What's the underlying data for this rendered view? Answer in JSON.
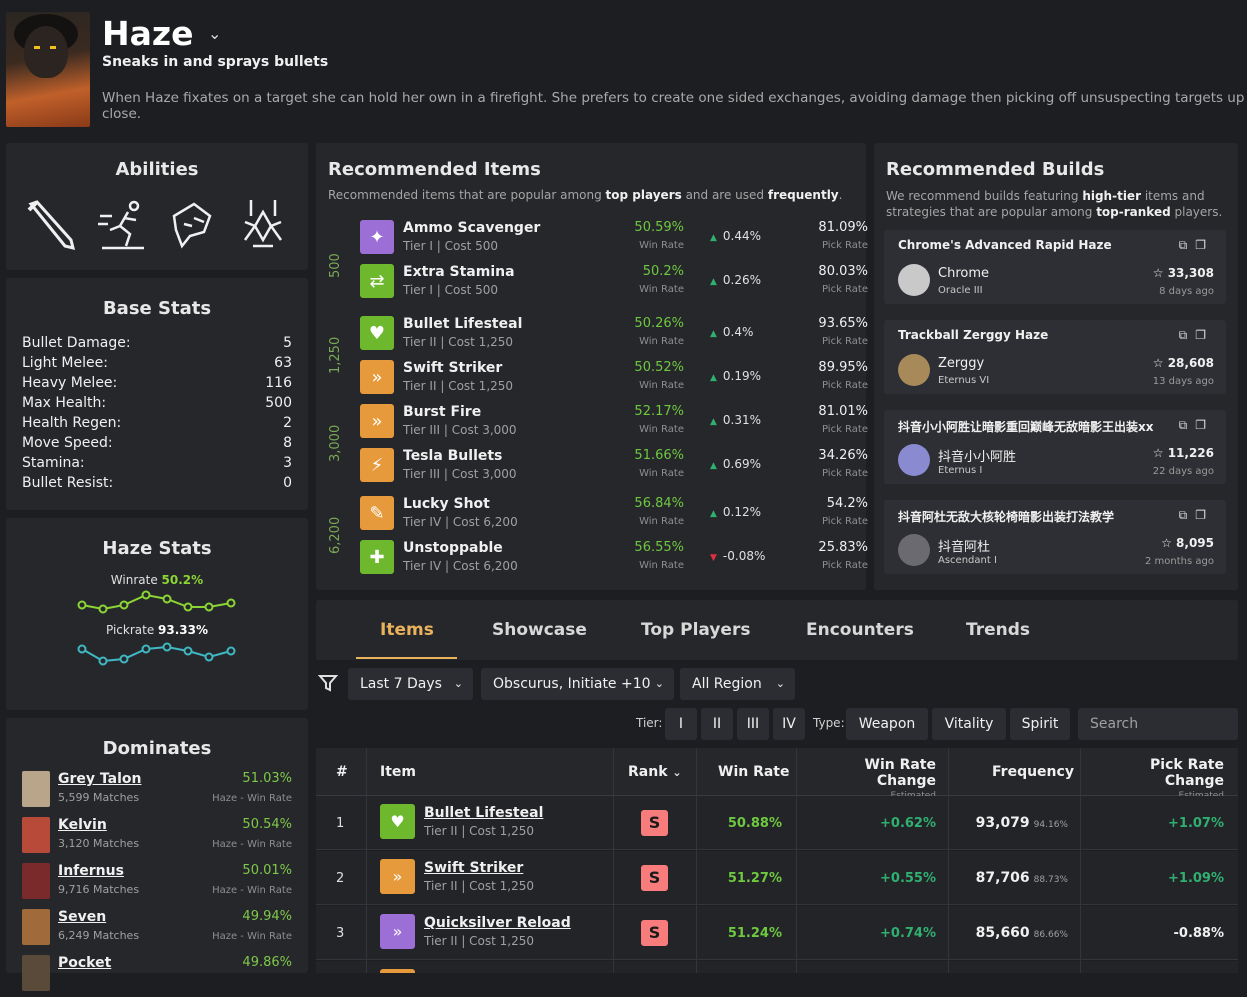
{
  "hero": {
    "name": "Haze",
    "tagline": "Sneaks in and sprays bullets",
    "description": "When Haze fixates on a target she can hold her own in a firefight. She prefers to create one sided exchanges, avoiding damage then picking off unsuspecting targets up close."
  },
  "abilities": {
    "title": "Abilities",
    "icons": [
      "dagger-icon",
      "sleep-runner-icon",
      "smoke-fixation-icon",
      "bullet-dance-icon"
    ]
  },
  "base_stats": {
    "title": "Base Stats",
    "rows": [
      {
        "label": "Bullet Damage:",
        "value": "5"
      },
      {
        "label": "Light Melee:",
        "value": "63"
      },
      {
        "label": "Heavy Melee:",
        "value": "116"
      },
      {
        "label": "Max Health:",
        "value": "500"
      },
      {
        "label": "Health Regen:",
        "value": "2"
      },
      {
        "label": "Move Speed:",
        "value": "8"
      },
      {
        "label": "Stamina:",
        "value": "3"
      },
      {
        "label": "Bullet Resist:",
        "value": "0"
      }
    ]
  },
  "hero_stats": {
    "title": "Haze Stats",
    "winrate_label": "Winrate",
    "winrate_value": "50.2%",
    "pickrate_label": "Pickrate",
    "pickrate_value": "93.33%",
    "winrate_color": "#8bd534",
    "pickrate_color": "#3fb8c4"
  },
  "dominates": {
    "title": "Dominates",
    "rows": [
      {
        "name": "Grey Talon",
        "matches": "5,599 Matches",
        "winrate": "51.03%",
        "sub": "Haze - Win Rate"
      },
      {
        "name": "Kelvin",
        "matches": "3,120 Matches",
        "winrate": "50.54%",
        "sub": "Haze - Win Rate"
      },
      {
        "name": "Infernus",
        "matches": "9,716 Matches",
        "winrate": "50.01%",
        "sub": "Haze - Win Rate"
      },
      {
        "name": "Seven",
        "matches": "6,249 Matches",
        "winrate": "49.94%",
        "sub": "Haze - Win Rate"
      },
      {
        "name": "Pocket",
        "matches": "",
        "winrate": "49.86%",
        "sub": ""
      }
    ]
  },
  "recommended_items": {
    "title": "Recommended Items",
    "subtitle_pre": "Recommended items that are popular among ",
    "subtitle_b1": "top players",
    "subtitle_mid": " and are used ",
    "subtitle_b2": "frequently",
    "subtitle_post": ".",
    "win_label": "Win Rate",
    "pick_label": "Pick Rate",
    "groups": [
      {
        "cost": "500",
        "items": [
          {
            "name": "Ammo Scavenger",
            "tier": "Tier I",
            "cost": "Cost 500",
            "winrate": "50.59%",
            "change": "0.44%",
            "dir": "up",
            "pickrate": "81.09%",
            "color": "#9b6fd6"
          },
          {
            "name": "Extra Stamina",
            "tier": "Tier I",
            "cost": "Cost 500",
            "winrate": "50.2%",
            "change": "0.26%",
            "dir": "up",
            "pickrate": "80.03%",
            "color": "#6eb82e"
          }
        ]
      },
      {
        "cost": "1,250",
        "items": [
          {
            "name": "Bullet Lifesteal",
            "tier": "Tier II",
            "cost": "Cost 1,250",
            "winrate": "50.26%",
            "change": "0.4%",
            "dir": "up",
            "pickrate": "93.65%",
            "color": "#6eb82e"
          },
          {
            "name": "Swift Striker",
            "tier": "Tier II",
            "cost": "Cost 1,250",
            "winrate": "50.52%",
            "change": "0.19%",
            "dir": "up",
            "pickrate": "89.95%",
            "color": "#e69a3c"
          }
        ]
      },
      {
        "cost": "3,000",
        "items": [
          {
            "name": "Burst Fire",
            "tier": "Tier III",
            "cost": "Cost 3,000",
            "winrate": "52.17%",
            "change": "0.31%",
            "dir": "up",
            "pickrate": "81.01%",
            "color": "#e69a3c"
          },
          {
            "name": "Tesla Bullets",
            "tier": "Tier III",
            "cost": "Cost 3,000",
            "winrate": "51.66%",
            "change": "0.69%",
            "dir": "up",
            "pickrate": "34.26%",
            "color": "#e69a3c"
          }
        ]
      },
      {
        "cost": "6,200",
        "items": [
          {
            "name": "Lucky Shot",
            "tier": "Tier IV",
            "cost": "Cost 6,200",
            "winrate": "56.84%",
            "change": "0.12%",
            "dir": "up",
            "pickrate": "54.2%",
            "color": "#e69a3c"
          },
          {
            "name": "Unstoppable",
            "tier": "Tier IV",
            "cost": "Cost 6,200",
            "winrate": "56.55%",
            "change": "-0.08%",
            "dir": "down",
            "pickrate": "25.83%",
            "color": "#6eb82e"
          }
        ]
      }
    ]
  },
  "recommended_builds": {
    "title": "Recommended Builds",
    "sub_pre": "We recommend builds featuring ",
    "sub_b1": "high-tier",
    "sub_mid": " items and strategies that are popular among ",
    "sub_b2": "top-ranked",
    "sub_post": " players.",
    "builds": [
      {
        "title": "Chrome's Advanced Rapid Haze",
        "author": "Chrome",
        "rank": "Oracle III",
        "stars": "33,308",
        "date": "8 days ago",
        "avatar_color": "#c9c9c9"
      },
      {
        "title": "Trackball Zerggy Haze",
        "author": "Zerggy",
        "rank": "Eternus VI",
        "stars": "28,608",
        "date": "13 days ago",
        "avatar_color": "#a88a5a"
      },
      {
        "title": "抖音小小阿胜让暗影重回巅峰无敌暗影王出装xx",
        "author": "抖音小小阿胜",
        "rank": "Eternus I",
        "stars": "11,226",
        "date": "22 days ago",
        "avatar_color": "#8a8ad0"
      },
      {
        "title": "抖音阿杜无敌大核轮椅暗影出装打法教学",
        "author": "抖音阿杜",
        "rank": "Ascendant I",
        "stars": "8,095",
        "date": "2 months ago",
        "avatar_color": "#6a6a70"
      }
    ]
  },
  "tabs": [
    "Items",
    "Showcase",
    "Top Players",
    "Encounters",
    "Trends"
  ],
  "filters": {
    "period": "Last 7 Days",
    "rank": "Obscurus, Initiate +10",
    "region": "All Region",
    "tier_label": "Tier:",
    "tiers": [
      "I",
      "II",
      "III",
      "IV"
    ],
    "type_label": "Type:",
    "types": [
      "Weapon",
      "Vitality",
      "Spirit"
    ],
    "search_placeholder": "Search"
  },
  "table": {
    "headers": {
      "num": "#",
      "item": "Item",
      "rank": "Rank",
      "winrate": "Win Rate",
      "wrchange": "Win Rate Change",
      "estimated": "Estimated",
      "frequency": "Frequency",
      "prchange": "Pick Rate Change"
    },
    "rows": [
      {
        "num": "1",
        "name": "Bullet Lifesteal",
        "meta": "Tier II | Cost 1,250",
        "rank": "S",
        "winrate": "50.88%",
        "wrchange": "+0.62%",
        "freq": "93,079",
        "freq_pct": "94.16%",
        "prchange": "+1.07%",
        "color": "#6eb82e"
      },
      {
        "num": "2",
        "name": "Swift Striker",
        "meta": "Tier II | Cost 1,250",
        "rank": "S",
        "winrate": "51.27%",
        "wrchange": "+0.55%",
        "freq": "87,706",
        "freq_pct": "88.73%",
        "prchange": "+1.09%",
        "color": "#e69a3c"
      },
      {
        "num": "3",
        "name": "Quicksilver Reload",
        "meta": "Tier II | Cost 1,250",
        "rank": "S",
        "winrate": "51.24%",
        "wrchange": "+0.74%",
        "freq": "85,660",
        "freq_pct": "86.66%",
        "prchange": "-0.88%",
        "color": "#9b6fd6"
      },
      {
        "num": "",
        "name": "",
        "meta": "",
        "rank": "",
        "winrate": "",
        "wrchange": "",
        "freq": "",
        "freq_pct": "",
        "prchange": "",
        "color": "#e69a3c"
      }
    ]
  }
}
